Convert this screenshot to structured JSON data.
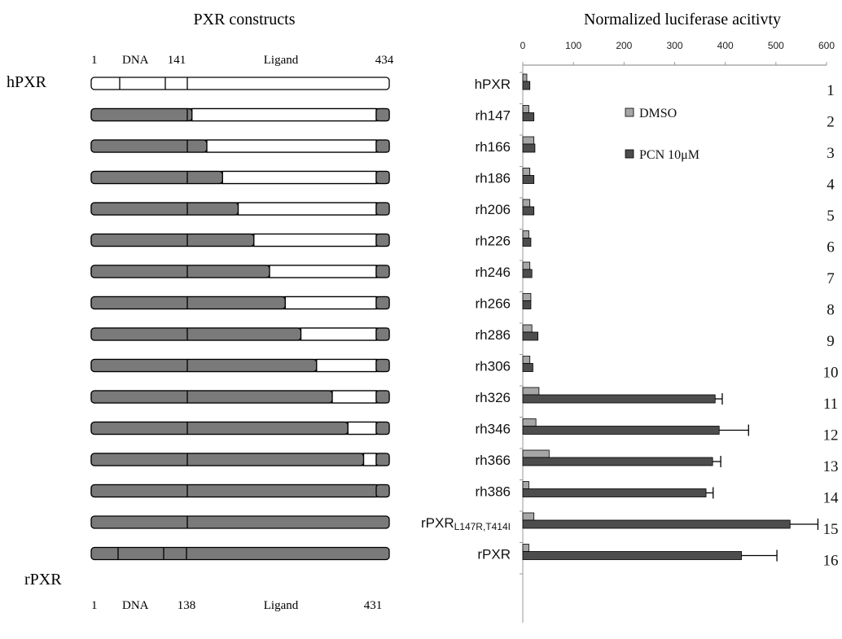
{
  "left_panel": {
    "title": "PXR constructs",
    "top_labels": {
      "start": "1",
      "dna": "DNA",
      "boundary": "141",
      "ligand": "Ligand",
      "end": "434"
    },
    "bottom_labels": {
      "start": "1",
      "dna": "DNA",
      "boundary": "138",
      "ligand": "Ligand",
      "end": "431"
    },
    "hpxr_label": "hPXR",
    "rpxr_label": "rPXR"
  },
  "right_panel": {
    "title": "Normalized luciferase acitivty"
  },
  "colors": {
    "rat_segment": "#7a7a7a",
    "human_segment": "#ffffff",
    "dmso": "#a6a6a6",
    "pcn": "#4d4d4d"
  },
  "chart_data": {
    "type": "bar",
    "orientation": "horizontal",
    "title": "Normalized luciferase acitivty",
    "categories": [
      "hPXR",
      "rh147",
      "rh166",
      "rh186",
      "rh206",
      "rh226",
      "rh246",
      "rh266",
      "rh286",
      "rh306",
      "rh326",
      "rh346",
      "rh366",
      "rh386",
      "rPXRL147R,T414I",
      "rPXR"
    ],
    "category_display": [
      {
        "text": "hPXR"
      },
      {
        "text": "rh147"
      },
      {
        "text": "rh166"
      },
      {
        "text": "rh186"
      },
      {
        "text": "rh206"
      },
      {
        "text": "rh226"
      },
      {
        "text": "rh246"
      },
      {
        "text": "rh266"
      },
      {
        "text": "rh286"
      },
      {
        "text": "rh306"
      },
      {
        "text": "rh326"
      },
      {
        "text": "rh346"
      },
      {
        "text": "rh366"
      },
      {
        "text": "rh386"
      },
      {
        "text": "rPXR",
        "sub": "L147R,T414I"
      },
      {
        "text": "rPXR"
      }
    ],
    "row_numbers": [
      "1",
      "2",
      "3",
      "4",
      "5",
      "6",
      "7",
      "8",
      "9",
      "10",
      "11",
      "12",
      "13",
      "14",
      "15",
      "16"
    ],
    "construct_junction": [
      141,
      147,
      166,
      186,
      206,
      226,
      246,
      266,
      286,
      306,
      326,
      346,
      366,
      386,
      null,
      138
    ],
    "xlim": [
      0,
      600
    ],
    "xticks": [
      0,
      100,
      200,
      300,
      400,
      500,
      600
    ],
    "legend_position": "top-right",
    "series": [
      {
        "name": "DMSO",
        "legend_label": "DMSO",
        "color": "#a6a6a6",
        "values": [
          8,
          12,
          22,
          14,
          14,
          12,
          14,
          16,
          18,
          14,
          32,
          26,
          52,
          12,
          22,
          12
        ],
        "errors": [
          0,
          0,
          0,
          0,
          0,
          0,
          0,
          0,
          0,
          0,
          0,
          0,
          0,
          0,
          0,
          0
        ]
      },
      {
        "name": "PCN 10μM",
        "legend_label": "PCN  10μM",
        "color": "#4d4d4d",
        "values": [
          14,
          22,
          24,
          22,
          22,
          16,
          18,
          16,
          30,
          20,
          380,
          388,
          375,
          362,
          528,
          432
        ],
        "errors": [
          0,
          0,
          0,
          0,
          0,
          0,
          0,
          0,
          0,
          0,
          14,
          58,
          16,
          14,
          55,
          70
        ]
      }
    ]
  }
}
